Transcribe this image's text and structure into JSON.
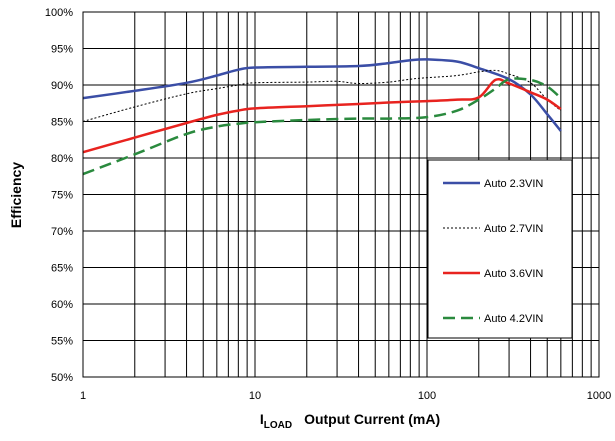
{
  "chart_data": {
    "type": "line",
    "xscale": "log",
    "xlim": [
      1,
      1000
    ],
    "ylim": [
      50,
      100
    ],
    "grid": true,
    "legend_position": "right",
    "xlabel_main": "I",
    "xlabel_sub": "LOAD",
    "xlabel_rest": "Output Current (mA)",
    "ylabel": "Efficiency",
    "x_ticks": [
      "1",
      "10",
      "100",
      "1000"
    ],
    "y_ticks": [
      "50%",
      "55%",
      "60%",
      "65%",
      "70%",
      "75%",
      "80%",
      "85%",
      "90%",
      "95%",
      "100%"
    ],
    "series": [
      {
        "name": "Auto 2.3VIN",
        "color": "#3b4ea6",
        "dash": "solid",
        "x": [
          1,
          2,
          4,
          6,
          8,
          10,
          20,
          40,
          60,
          80,
          100,
          150,
          200,
          300,
          400,
          500,
          600
        ],
        "y": [
          88.2,
          89.2,
          90.3,
          91.3,
          92.1,
          92.4,
          92.5,
          92.6,
          93.0,
          93.4,
          93.5,
          93.2,
          92.3,
          90.8,
          88.7,
          86.0,
          83.7
        ]
      },
      {
        "name": "Auto 2.7VIN",
        "color": "#000000",
        "dash": "dotted",
        "x": [
          1,
          2,
          4,
          6,
          8,
          10,
          20,
          30,
          40,
          60,
          80,
          100,
          150,
          200,
          250,
          300,
          400,
          500,
          600
        ],
        "y": [
          85.0,
          87.0,
          88.8,
          89.5,
          90.0,
          90.3,
          90.4,
          90.5,
          90.2,
          90.4,
          90.8,
          91.0,
          91.3,
          91.8,
          92.0,
          91.5,
          90.3,
          88.0,
          86.5
        ]
      },
      {
        "name": "Auto 3.6VIN",
        "color": "#e8231f",
        "dash": "solid",
        "x": [
          1,
          2,
          4,
          6,
          8,
          10,
          20,
          40,
          60,
          100,
          150,
          200,
          250,
          300,
          400,
          500,
          600
        ],
        "y": [
          80.8,
          82.8,
          84.8,
          85.9,
          86.5,
          86.8,
          87.1,
          87.4,
          87.6,
          87.8,
          88.0,
          88.3,
          90.7,
          90.2,
          89.0,
          88.0,
          86.7
        ]
      },
      {
        "name": "Auto 4.2VIN",
        "color": "#2a8a3e",
        "dash": "dashed",
        "x": [
          1,
          2,
          4,
          6,
          8,
          10,
          20,
          40,
          60,
          100,
          150,
          200,
          250,
          300,
          400,
          500,
          600
        ],
        "y": [
          77.8,
          80.5,
          83.3,
          84.3,
          84.7,
          84.9,
          85.2,
          85.4,
          85.4,
          85.6,
          86.5,
          88.0,
          89.5,
          90.8,
          90.7,
          89.8,
          88.2
        ]
      }
    ]
  }
}
